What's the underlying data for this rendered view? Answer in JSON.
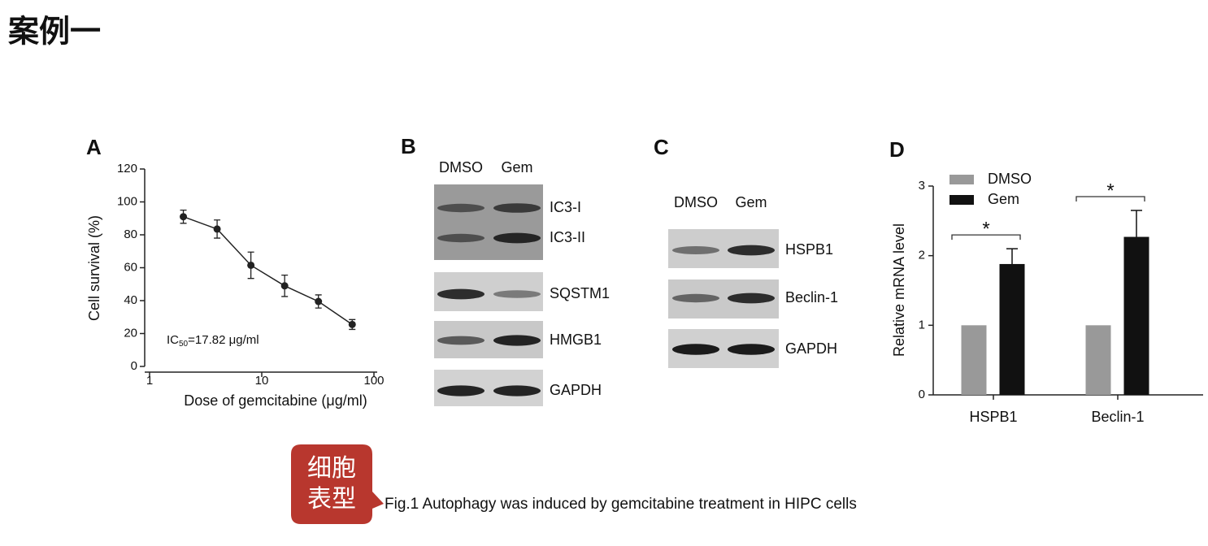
{
  "title": "案例一",
  "panels": [
    "A",
    "B",
    "C",
    "D"
  ],
  "chart_data": [
    {
      "type": "line",
      "xlabel": "Dose of gemcitabine (μg/ml)",
      "ylabel": "Cell survival (%)",
      "x": [
        2,
        4,
        8,
        16,
        32,
        64
      ],
      "values": [
        91,
        83.5,
        61.5,
        49,
        39.5,
        25.5
      ],
      "errors": [
        4,
        5.5,
        8,
        6.5,
        4,
        3
      ],
      "xscale": "log",
      "xlim": [
        1,
        100
      ],
      "xticks": [
        1,
        10,
        100
      ],
      "ylim": [
        0,
        120
      ],
      "yticks": [
        0,
        20,
        40,
        60,
        80,
        100,
        120
      ],
      "color": "#222222",
      "annotation": {
        "prefix": "IC",
        "subscript": "50",
        "suffix": "=17.82 μg/ml"
      }
    },
    {
      "type": "bar",
      "ylabel": "Relative mRNA level",
      "categories": [
        "HSPB1",
        "Beclin-1"
      ],
      "series": [
        {
          "name": "DMSO",
          "color": "#999999",
          "values": [
            1,
            1
          ]
        },
        {
          "name": "Gem",
          "color": "#111111",
          "values": [
            1.88,
            2.27
          ],
          "errors": [
            0.22,
            0.38
          ]
        }
      ],
      "ylim": [
        0,
        3
      ],
      "yticks": [
        0,
        1,
        2,
        3
      ],
      "significance": [
        "*",
        "*"
      ]
    }
  ],
  "blots": [
    {
      "lanes": [
        "DMSO",
        "Gem"
      ],
      "strips": [
        [
          "IC3-I",
          "IC3-II"
        ],
        [
          "SQSTM1"
        ],
        [
          "HMGB1"
        ],
        [
          "GAPDH"
        ]
      ]
    },
    {
      "lanes": [
        "DMSO",
        "Gem"
      ],
      "strips": [
        [
          "HSPB1"
        ],
        [
          "Beclin-1"
        ],
        [
          "GAPDH"
        ]
      ]
    }
  ],
  "callout": [
    "细胞",
    "表型"
  ],
  "caption": "Fig.1 Autophagy was induced by gemcitabine treatment in HIPC cells"
}
